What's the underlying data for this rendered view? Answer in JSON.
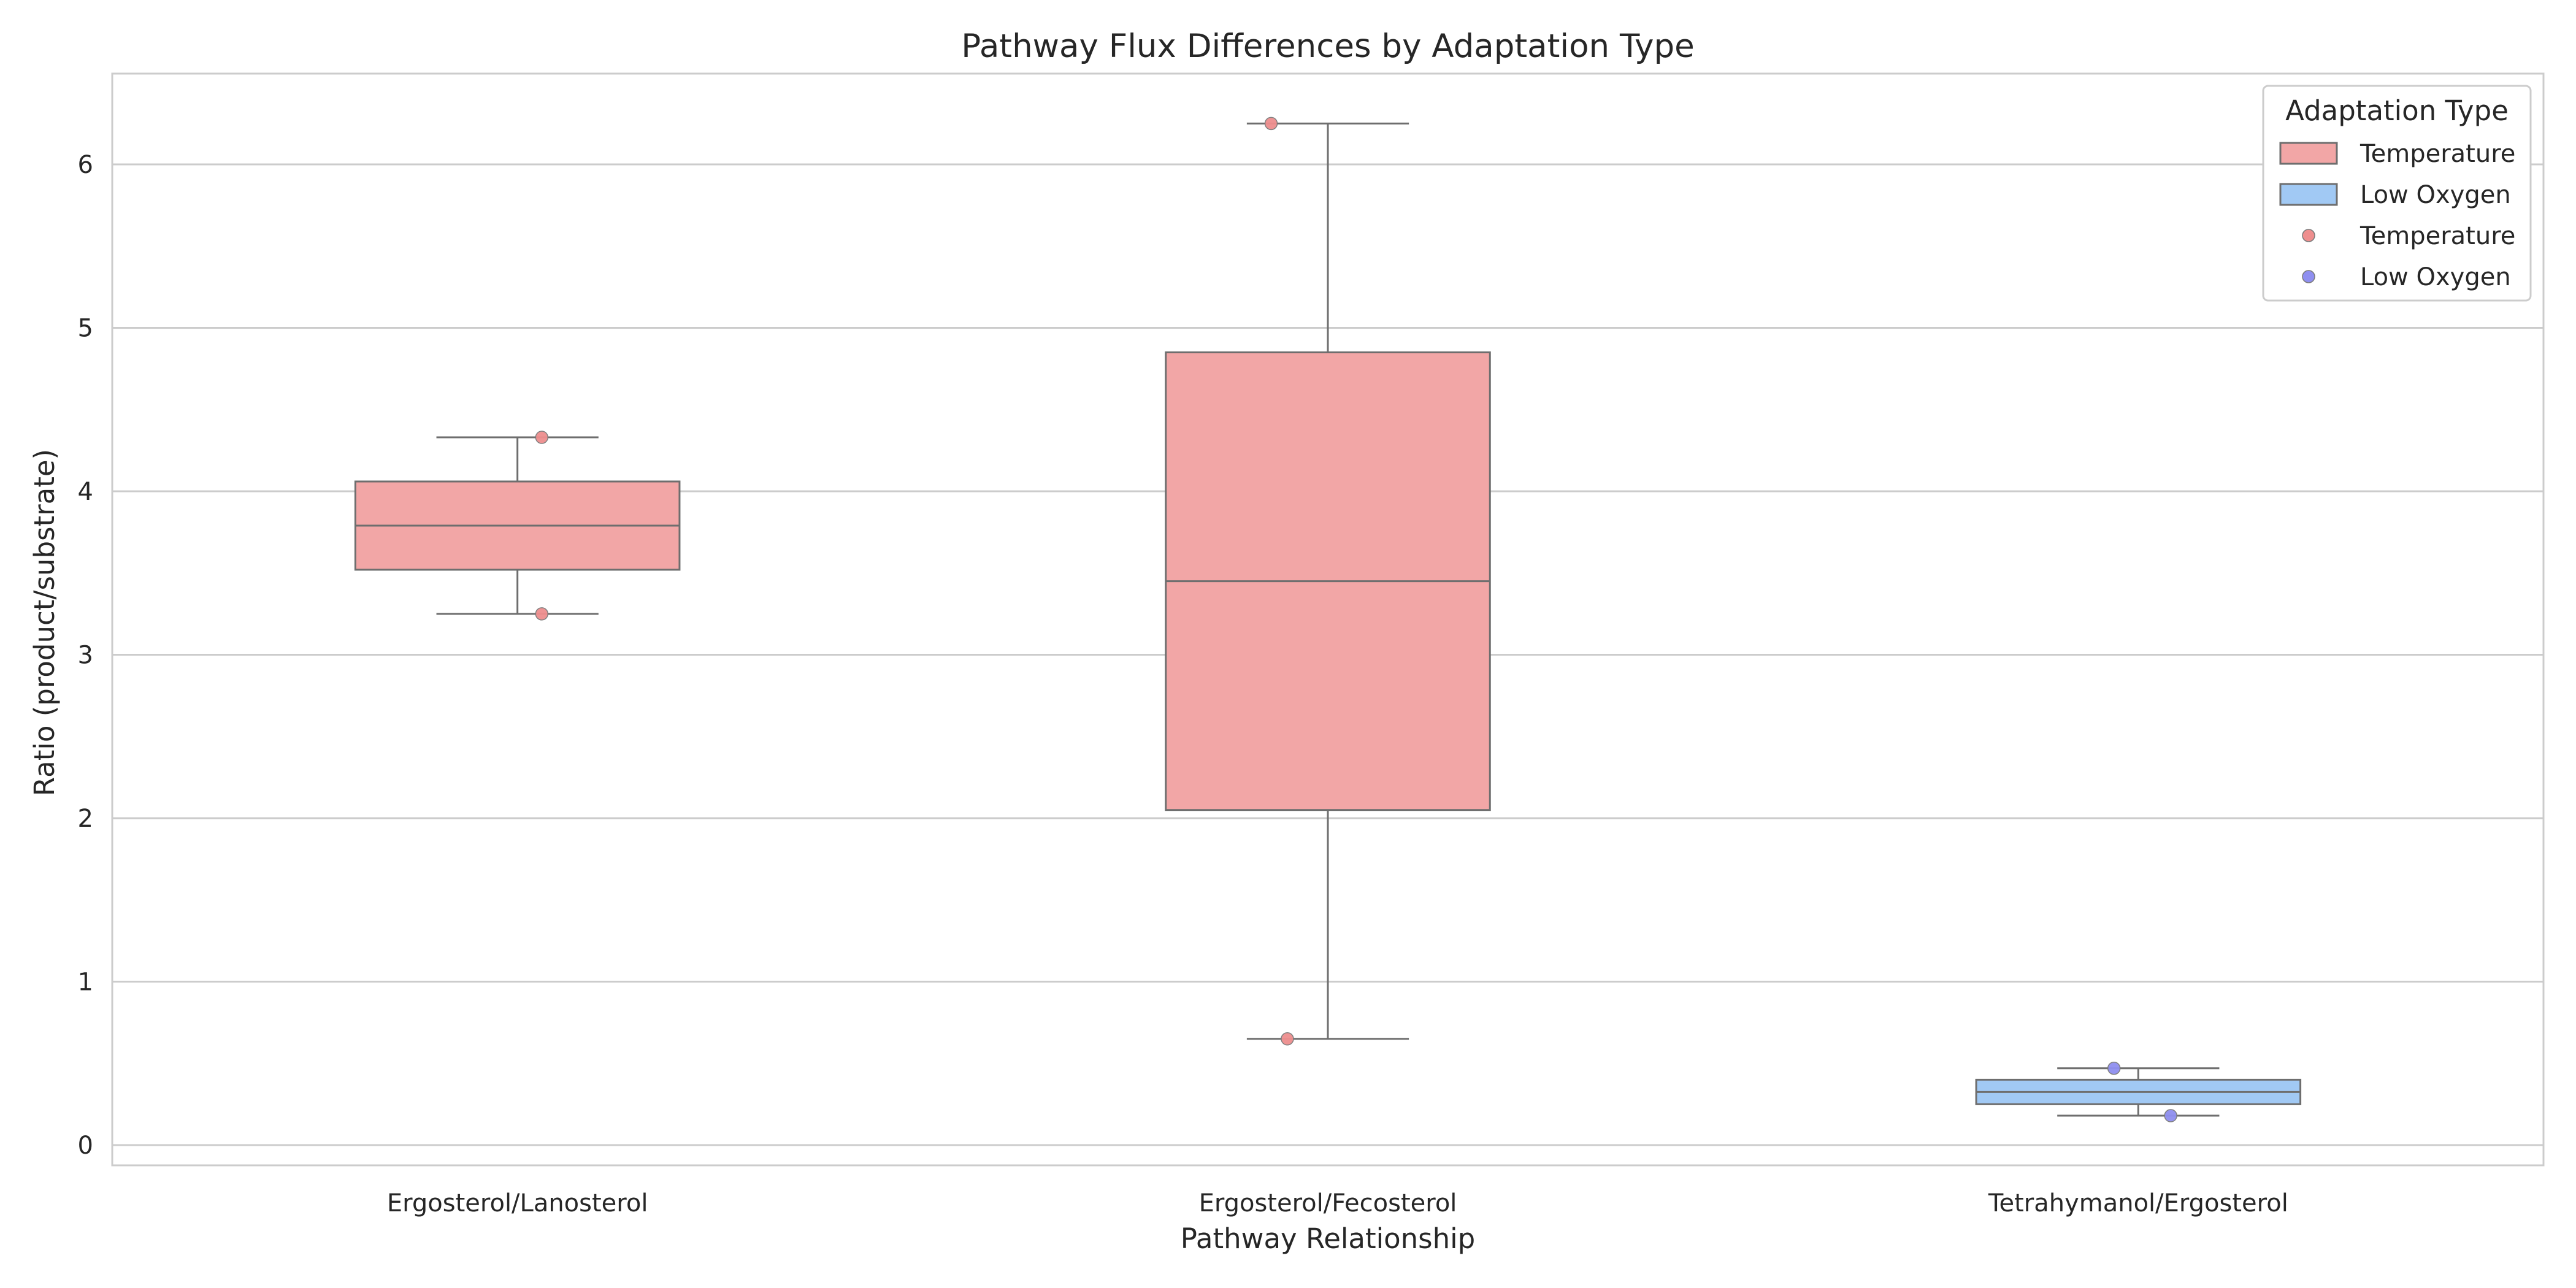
{
  "chart_data": {
    "type": "box",
    "title": "Pathway Flux Differences by Adaptation Type",
    "xlabel": "Pathway Relationship",
    "ylabel": "Ratio (product/substrate)",
    "categories": [
      "Ergosterol/Lanosterol",
      "Ergosterol/Fecosterol",
      "Tetrahymanol/Ergosterol"
    ],
    "yticks": [
      "0",
      "1",
      "2",
      "3",
      "4",
      "5",
      "6"
    ],
    "ylim": [
      -0.13,
      6.55
    ],
    "grid": "horizontal",
    "legend_position": "top-right",
    "series": [
      {
        "name": "Temperature",
        "box_color": "#f2a6a6",
        "point_color": "#ee8e8e",
        "boxes": [
          {
            "category": "Ergosterol/Lanosterol",
            "whisker_low": 3.25,
            "q1": 3.52,
            "median": 3.79,
            "q3": 4.06,
            "whisker_high": 4.33
          },
          {
            "category": "Ergosterol/Fecosterol",
            "whisker_low": 0.65,
            "q1": 2.05,
            "median": 3.45,
            "q3": 4.85,
            "whisker_high": 6.25
          }
        ],
        "points": [
          {
            "category": "Ergosterol/Lanosterol",
            "value": 4.33,
            "jitter": 0.03
          },
          {
            "category": "Ergosterol/Lanosterol",
            "value": 3.25,
            "jitter": 0.03
          },
          {
            "category": "Ergosterol/Fecosterol",
            "value": 6.25,
            "jitter": -0.07
          },
          {
            "category": "Ergosterol/Fecosterol",
            "value": 0.65,
            "jitter": -0.05
          }
        ]
      },
      {
        "name": "Low Oxygen",
        "box_color": "#a1c9f4",
        "point_color": "#8f8ff0",
        "boxes": [
          {
            "category": "Tetrahymanol/Ergosterol",
            "whisker_low": 0.18,
            "q1": 0.25,
            "median": 0.325,
            "q3": 0.4,
            "whisker_high": 0.47
          }
        ],
        "points": [
          {
            "category": "Tetrahymanol/Ergosterol",
            "value": 0.47,
            "jitter": -0.03
          },
          {
            "category": "Tetrahymanol/Ergosterol",
            "value": 0.18,
            "jitter": 0.04
          }
        ]
      }
    ],
    "legend": {
      "title": "Adaptation Type",
      "entries": [
        {
          "kind": "box",
          "label": "Temperature",
          "color": "#f2a6a6"
        },
        {
          "kind": "box",
          "label": "Low Oxygen",
          "color": "#a1c9f4"
        },
        {
          "kind": "point",
          "label": "Temperature",
          "color": "#ee8e8e"
        },
        {
          "kind": "point",
          "label": "Low Oxygen",
          "color": "#8f8ff0"
        }
      ]
    },
    "colors": {
      "grid": "#cccccc",
      "frame": "#cccccc",
      "box_edge": "#6e6e6e"
    }
  }
}
